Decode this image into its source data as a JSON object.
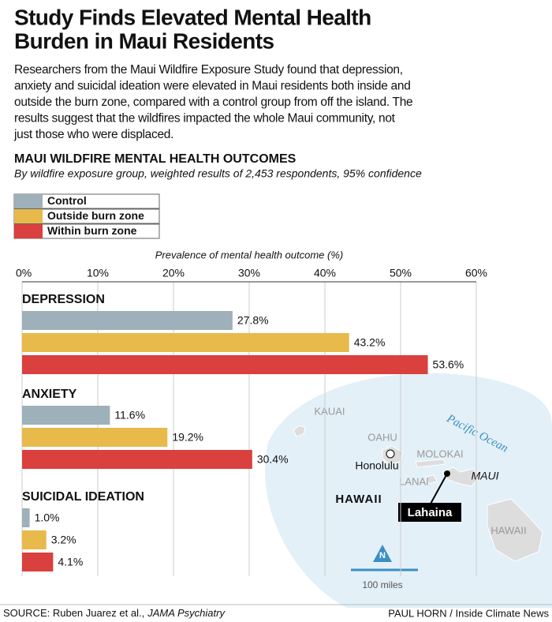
{
  "header": {
    "title_lines": [
      "Study Finds Elevated Mental Health",
      "Burden in Maui Residents"
    ],
    "description_lines": [
      "Researchers from the Maui Wildfire Exposure Study found that depression,",
      "anxiety and suicidal ideation were elevated in Maui residents both inside and",
      "outside the burn zone, compared with a control group from off the island. The",
      "results suggest that the wildfires impacted the whole Maui community, not",
      "just those who were displaced."
    ]
  },
  "chart_data": {
    "type": "bar",
    "orientation": "horizontal",
    "title": "MAUI WILDFIRE MENTAL HEALTH OUTCOMES",
    "subtitle": "By wildfire exposure group, weighted results of 2,453 respondents, 95% confidence",
    "x_label": "Prevalence of mental health outcome (%)",
    "categories": [
      "DEPRESSION",
      "ANXIETY",
      "SUICIDAL IDEATION"
    ],
    "series": [
      {
        "name": "Control",
        "color": "#9eb0b9",
        "values": [
          27.8,
          11.6,
          1.0
        ],
        "value_labels": [
          "27.8%",
          "11.6%",
          "1.0%"
        ]
      },
      {
        "name": "Outside burn zone",
        "color": "#e8b94b",
        "values": [
          43.2,
          19.2,
          3.2
        ],
        "value_labels": [
          "43.2%",
          "19.2%",
          "3.2%"
        ]
      },
      {
        "name": "Within burn zone",
        "color": "#d9403e",
        "values": [
          53.6,
          30.4,
          4.1
        ],
        "value_labels": [
          "53.6%",
          "30.4%",
          "4.1%"
        ]
      }
    ],
    "xlim": [
      0,
      60
    ],
    "xticks": [
      {
        "value": 0,
        "label": "0%"
      },
      {
        "value": 10,
        "label": "10%"
      },
      {
        "value": 20,
        "label": "20%"
      },
      {
        "value": 30,
        "label": "30%"
      },
      {
        "value": 40,
        "label": "40%"
      },
      {
        "value": 50,
        "label": "50%"
      },
      {
        "value": 60,
        "label": "60%"
      }
    ],
    "grid": true
  },
  "map": {
    "kauai": "KAUAI",
    "oahu": "OAHU",
    "honolulu": "Honolulu",
    "molokai": "MOLOKAI",
    "lanai": "LANAI",
    "maui": "MAUI",
    "hawaii_island": "HAWAII",
    "state": "HAWAII",
    "ocean": "Pacific Ocean",
    "lahaina": "Lahaina",
    "north": "N",
    "scale": "100 miles"
  },
  "footer": {
    "source_prefix": "SOURCE: Ruben Juarez et al.,",
    "source_publication": "JAMA Psychiatry",
    "credit": "PAUL HORN / Inside Climate News"
  }
}
